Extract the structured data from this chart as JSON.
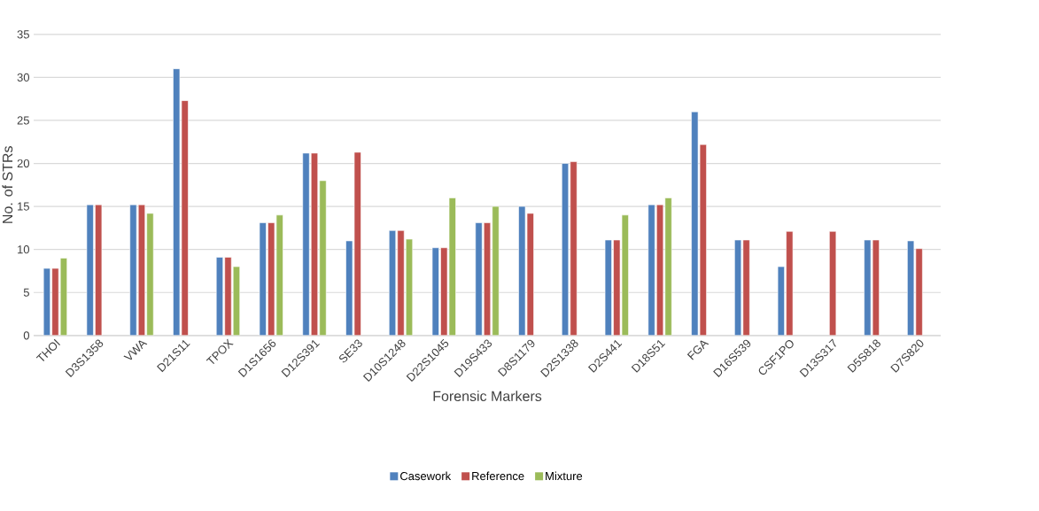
{
  "chart_data": {
    "type": "bar",
    "xlabel": "Forensic Markers",
    "ylabel": "No. of STRs",
    "categories": [
      "THOI",
      "D3S1358",
      "VWA",
      "D21S11",
      "TPOX",
      "D1S1656",
      "D12S391",
      "SE33",
      "D10S1248",
      "D22S1045",
      "D19S433",
      "D8S1179",
      "D2S1338",
      "D2S441",
      "D18S51",
      "FGA",
      "D16S539",
      "CSF1PO",
      "D13S317",
      "D5S818",
      "D7S820"
    ],
    "series": [
      {
        "name": "Casework",
        "color": "#4f81bd",
        "values": [
          7.8,
          15.2,
          15.2,
          31,
          9.1,
          13.1,
          21.2,
          11,
          12.2,
          10.2,
          13.1,
          15,
          20,
          11.1,
          15.2,
          26,
          11.1,
          8,
          null,
          11.1,
          11
        ]
      },
      {
        "name": "Reference",
        "color": "#c0504d",
        "values": [
          7.8,
          15.2,
          15.2,
          27.3,
          9.1,
          13.1,
          21.2,
          21.3,
          12.2,
          10.2,
          13.1,
          14.2,
          20.2,
          11.1,
          15.2,
          22.2,
          11.1,
          12.1,
          12.1,
          11.1,
          10.1
        ]
      },
      {
        "name": "Mixture",
        "color": "#9bbb59",
        "values": [
          9,
          null,
          14.2,
          null,
          8,
          14,
          18,
          null,
          11.2,
          16,
          15,
          null,
          null,
          14,
          16,
          null,
          null,
          null,
          null,
          null,
          null
        ]
      }
    ],
    "ylim": [
      0,
      35
    ],
    "yticks": [
      0,
      5,
      10,
      15,
      20,
      25,
      30,
      35
    ],
    "grid": "y",
    "legend": "bottom"
  }
}
